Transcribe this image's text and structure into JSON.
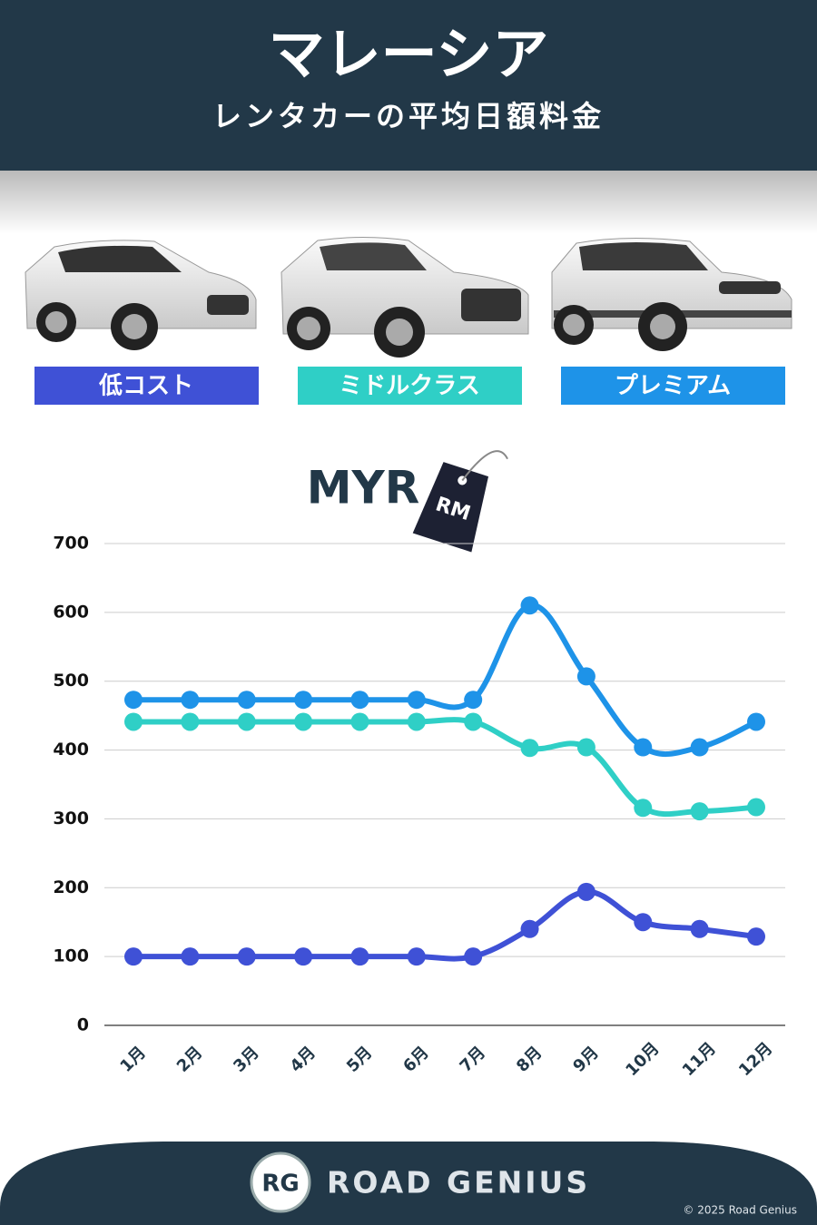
{
  "header": {
    "title": "マレーシア",
    "subtitle": "レンタカーの平均日額料金"
  },
  "chart_data": {
    "type": "line",
    "currency": "MYR",
    "tag": "RM",
    "categories": [
      "1月",
      "2月",
      "3月",
      "4月",
      "5月",
      "6月",
      "7月",
      "8月",
      "9月",
      "10月",
      "11月",
      "12月"
    ],
    "series": [
      {
        "name": "低コスト",
        "color": "#3f51d6",
        "values": [
          100,
          100,
          100,
          100,
          100,
          100,
          100,
          140,
          194,
          150,
          140,
          129
        ]
      },
      {
        "name": "ミドルクラス",
        "color": "#2fcfc6",
        "values": [
          441,
          441,
          441,
          441,
          441,
          441,
          441,
          403,
          404,
          316,
          311,
          317
        ]
      },
      {
        "name": "プレミアム",
        "color": "#1e93e8",
        "values": [
          473,
          473,
          473,
          473,
          473,
          473,
          473,
          610,
          507,
          404,
          404,
          441
        ]
      }
    ],
    "ylim": [
      0,
      700
    ],
    "yticks": [
      0,
      100,
      200,
      300,
      400,
      500,
      600,
      700
    ],
    "grid": true
  },
  "footer": {
    "logo": "RG",
    "brand": "ROAD GENIUS",
    "copyright": "© 2025 Road Genius"
  }
}
